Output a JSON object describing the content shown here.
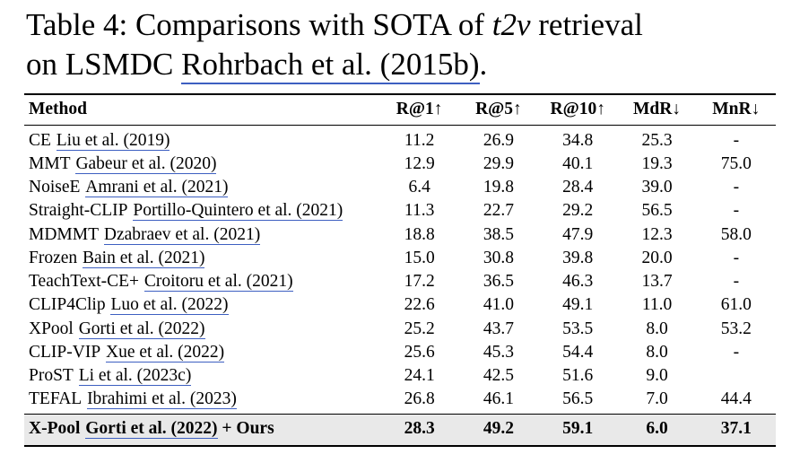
{
  "caption": {
    "line1_part1": "Table 4: Comparisons with SOTA of ",
    "line1_italic": "t2v",
    "line1_part2": " retrieval",
    "line2_part1": "on LSMDC ",
    "line2_link": "Rohrbach et al. (2015b)",
    "line2_end": "."
  },
  "table": {
    "headers": {
      "method": "Method",
      "r1": "R@1↑",
      "r5": "R@5↑",
      "r10": "R@10↑",
      "mdr": "MdR↓",
      "mnr": "MnR↓"
    },
    "rows": [
      {
        "name": "CE",
        "cite": "Liu et al. (2019)",
        "r1": "11.2",
        "r5": "26.9",
        "r10": "34.8",
        "mdr": "25.3",
        "mnr": "-"
      },
      {
        "name": "MMT",
        "cite": "Gabeur et al. (2020)",
        "r1": "12.9",
        "r5": "29.9",
        "r10": "40.1",
        "mdr": "19.3",
        "mnr": "75.0"
      },
      {
        "name": "NoiseE",
        "cite": "Amrani et al. (2021)",
        "r1": "6.4",
        "r5": "19.8",
        "r10": "28.4",
        "mdr": "39.0",
        "mnr": "-"
      },
      {
        "name": "Straight-CLIP",
        "cite": "Portillo-Quintero et al. (2021)",
        "r1": "11.3",
        "r5": "22.7",
        "r10": "29.2",
        "mdr": "56.5",
        "mnr": "-"
      },
      {
        "name": "MDMMT",
        "cite": "Dzabraev et al. (2021)",
        "r1": "18.8",
        "r5": "38.5",
        "r10": "47.9",
        "mdr": "12.3",
        "mnr": "58.0"
      },
      {
        "name": "Frozen",
        "cite": "Bain et al. (2021)",
        "r1": "15.0",
        "r5": "30.8",
        "r10": "39.8",
        "mdr": "20.0",
        "mnr": "-"
      },
      {
        "name": "TeachText-CE+",
        "cite": "Croitoru et al. (2021)",
        "r1": "17.2",
        "r5": "36.5",
        "r10": "46.3",
        "mdr": "13.7",
        "mnr": "-"
      },
      {
        "name": "CLIP4Clip",
        "cite": "Luo et al. (2022)",
        "r1": "22.6",
        "r5": "41.0",
        "r10": "49.1",
        "mdr": "11.0",
        "mnr": "61.0"
      },
      {
        "name": "XPool",
        "cite": "Gorti et al. (2022)",
        "r1": "25.2",
        "r5": "43.7",
        "r10": "53.5",
        "mdr": "8.0",
        "mnr": "53.2"
      },
      {
        "name": "CLIP-VIP",
        "cite": "Xue et al. (2022)",
        "r1": "25.6",
        "r5": "45.3",
        "r10": "54.4",
        "mdr": "8.0",
        "mnr": "-"
      },
      {
        "name": "ProST",
        "cite": "Li et al. (2023c)",
        "r1": "24.1",
        "r5": "42.5",
        "r10": "51.6",
        "mdr": "9.0",
        "mnr": ""
      },
      {
        "name": "TEFAL",
        "cite": "Ibrahimi et al. (2023)",
        "r1": "26.8",
        "r5": "46.1",
        "r10": "56.5",
        "mdr": "7.0",
        "mnr": "44.4"
      }
    ],
    "final_row": {
      "name": "X-Pool",
      "cite": "Gorti et al. (2022)",
      "suffix": " + Ours",
      "r1": "28.3",
      "r5": "49.2",
      "r10": "59.1",
      "mdr": "6.0",
      "mnr": "37.1"
    }
  },
  "colors": {
    "link_underline": "#3d5fc1",
    "highlight_bg": "#e9e9e9",
    "rule": "#000000",
    "background": "#ffffff",
    "text": "#000000"
  }
}
